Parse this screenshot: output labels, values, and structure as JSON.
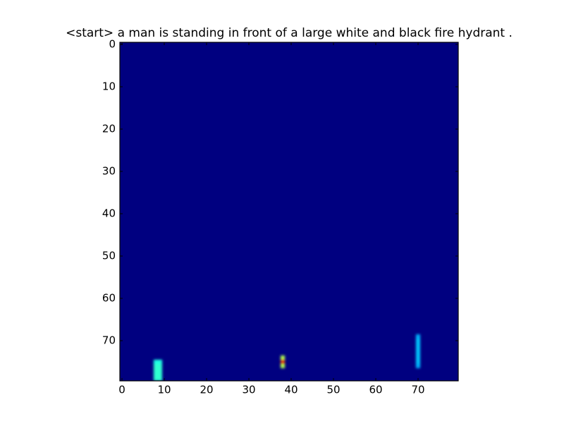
{
  "chart_data": {
    "type": "heatmap",
    "title": "<start> a man is standing in front of a large white and black fire hydrant .",
    "colormap": "jet",
    "clim": [
      0,
      1
    ],
    "xlim": [
      -0.5,
      79.5
    ],
    "ylim": [
      79.5,
      -0.5
    ],
    "xticks": [
      0,
      10,
      20,
      30,
      40,
      50,
      60,
      70
    ],
    "yticks": [
      0,
      10,
      20,
      30,
      40,
      50,
      60,
      70
    ],
    "cells": [
      {
        "x": 8,
        "y": 75,
        "value": 0.4
      },
      {
        "x": 9,
        "y": 75,
        "value": 0.4
      },
      {
        "x": 8,
        "y": 76,
        "value": 0.42
      },
      {
        "x": 9,
        "y": 76,
        "value": 0.42
      },
      {
        "x": 8,
        "y": 77,
        "value": 0.42
      },
      {
        "x": 9,
        "y": 77,
        "value": 0.42
      },
      {
        "x": 8,
        "y": 78,
        "value": 0.42
      },
      {
        "x": 9,
        "y": 78,
        "value": 0.42
      },
      {
        "x": 8,
        "y": 79,
        "value": 0.42
      },
      {
        "x": 9,
        "y": 79,
        "value": 0.42
      },
      {
        "x": 70,
        "y": 69,
        "value": 0.3
      },
      {
        "x": 70,
        "y": 70,
        "value": 0.32
      },
      {
        "x": 70,
        "y": 71,
        "value": 0.32
      },
      {
        "x": 70,
        "y": 72,
        "value": 0.32
      },
      {
        "x": 70,
        "y": 73,
        "value": 0.32
      },
      {
        "x": 70,
        "y": 74,
        "value": 0.32
      },
      {
        "x": 70,
        "y": 75,
        "value": 0.32
      },
      {
        "x": 70,
        "y": 76,
        "value": 0.3
      },
      {
        "x": 38,
        "y": 74,
        "value": 0.55
      },
      {
        "x": 38,
        "y": 75,
        "value": 0.9
      },
      {
        "x": 38,
        "y": 76,
        "value": 0.55
      }
    ]
  }
}
